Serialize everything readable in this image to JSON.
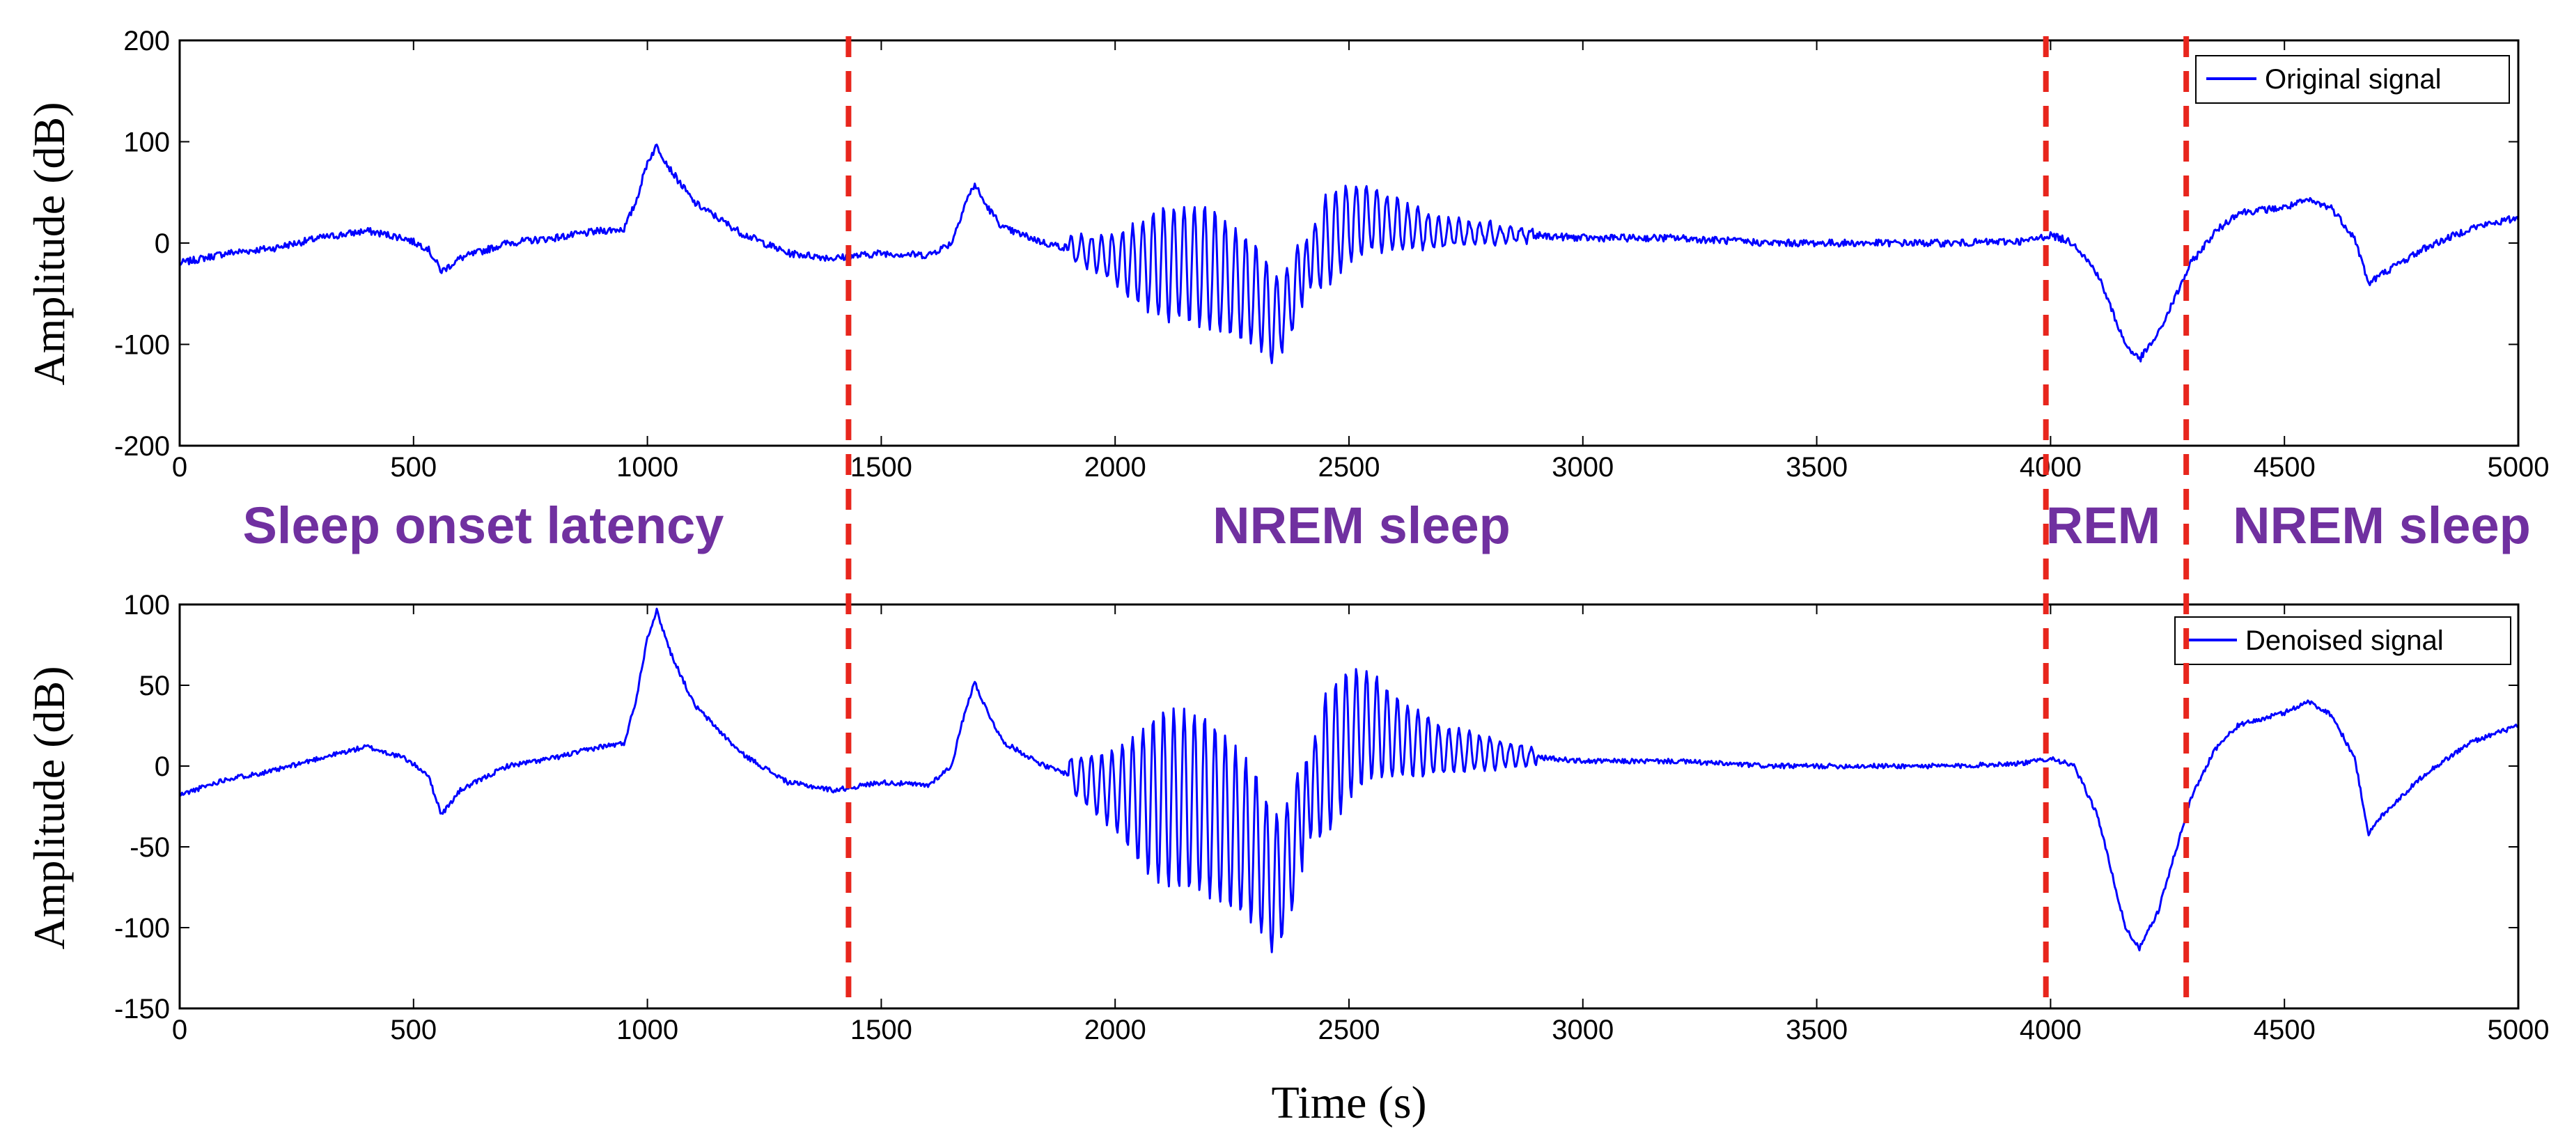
{
  "chart_data": [
    {
      "type": "line",
      "panel": "top",
      "title": "",
      "xlabel": "",
      "ylabel": "Amplitude (dB)",
      "xlim": [
        0,
        5000
      ],
      "ylim": [
        -200,
        200
      ],
      "xticks": [
        0,
        500,
        1000,
        1500,
        2000,
        2500,
        3000,
        3500,
        4000,
        4500,
        5000
      ],
      "yticks": [
        -200,
        -100,
        0,
        100,
        200
      ],
      "legend": "top-right",
      "grid": false,
      "series": [
        {
          "name": "Original signal",
          "color": "#0000ff",
          "noise": 3.5,
          "key_points": [
            [
              0,
              -20
            ],
            [
              100,
              -10
            ],
            [
              200,
              -5
            ],
            [
              300,
              5
            ],
            [
              400,
              12
            ],
            [
              480,
              5
            ],
            [
              530,
              -5
            ],
            [
              560,
              -28
            ],
            [
              600,
              -15
            ],
            [
              700,
              0
            ],
            [
              800,
              5
            ],
            [
              900,
              12
            ],
            [
              950,
              14
            ],
            [
              975,
              40
            ],
            [
              1000,
              80
            ],
            [
              1020,
              96
            ],
            [
              1050,
              72
            ],
            [
              1100,
              40
            ],
            [
              1200,
              10
            ],
            [
              1300,
              -10
            ],
            [
              1400,
              -15
            ],
            [
              1500,
              -10
            ],
            [
              1600,
              -12
            ],
            [
              1650,
              0
            ],
            [
              1680,
              40
            ],
            [
              1700,
              58
            ],
            [
              1720,
              40
            ],
            [
              1760,
              15
            ],
            [
              1850,
              0
            ],
            [
              1950,
              -10
            ],
            [
              2050,
              -20
            ],
            [
              2150,
              -20
            ],
            [
              2200,
              -25
            ],
            [
              2300,
              -50
            ],
            [
              2340,
              -75
            ],
            [
              2370,
              -60
            ],
            [
              2400,
              -30
            ],
            [
              2450,
              0
            ],
            [
              2500,
              20
            ],
            [
              2550,
              25
            ],
            [
              2600,
              18
            ],
            [
              2700,
              10
            ],
            [
              2800,
              10
            ],
            [
              3000,
              5
            ],
            [
              3200,
              5
            ],
            [
              3400,
              0
            ],
            [
              3600,
              0
            ],
            [
              3800,
              0
            ],
            [
              3950,
              2
            ],
            [
              4000,
              8
            ],
            [
              4050,
              0
            ],
            [
              4100,
              -30
            ],
            [
              4160,
              -100
            ],
            [
              4190,
              -115
            ],
            [
              4230,
              -90
            ],
            [
              4300,
              -20
            ],
            [
              4350,
              10
            ],
            [
              4400,
              30
            ],
            [
              4500,
              35
            ],
            [
              4550,
              42
            ],
            [
              4600,
              35
            ],
            [
              4650,
              5
            ],
            [
              4680,
              -40
            ],
            [
              4710,
              -30
            ],
            [
              4800,
              -5
            ],
            [
              4900,
              15
            ],
            [
              5000,
              25
            ]
          ],
          "oscillations": [
            {
              "start": 1900,
              "end": 2420,
              "period": 22,
              "amplitude": [
                [
                  1900,
                  10
                ],
                [
                  2000,
                  25
                ],
                [
                  2100,
                  55
                ],
                [
                  2200,
                  60
                ],
                [
                  2300,
                  50
                ],
                [
                  2400,
                  35
                ],
                [
                  2420,
                  10
                ]
              ]
            },
            {
              "start": 2400,
              "end": 2900,
              "period": 22,
              "amplitude": [
                [
                  2400,
                  15
                ],
                [
                  2450,
                  45
                ],
                [
                  2500,
                  40
                ],
                [
                  2600,
                  25
                ],
                [
                  2700,
                  15
                ],
                [
                  2800,
                  10
                ],
                [
                  2900,
                  5
                ]
              ]
            }
          ]
        }
      ]
    },
    {
      "type": "line",
      "panel": "bottom",
      "title": "",
      "xlabel": "Time (s)",
      "ylabel": "Amplitude (dB)",
      "xlim": [
        0,
        5000
      ],
      "ylim": [
        -150,
        100
      ],
      "xticks": [
        0,
        500,
        1000,
        1500,
        2000,
        2500,
        3000,
        3500,
        4000,
        4500,
        5000
      ],
      "yticks": [
        -150,
        -100,
        -50,
        0,
        50,
        100
      ],
      "legend": "top-right",
      "grid": false,
      "series": [
        {
          "name": "Denoised signal",
          "color": "#0000ff",
          "noise": 1.5,
          "key_points": [
            [
              0,
              -18
            ],
            [
              100,
              -8
            ],
            [
              200,
              -3
            ],
            [
              300,
              5
            ],
            [
              400,
              12
            ],
            [
              480,
              5
            ],
            [
              530,
              -5
            ],
            [
              560,
              -30
            ],
            [
              600,
              -15
            ],
            [
              700,
              0
            ],
            [
              800,
              5
            ],
            [
              900,
              12
            ],
            [
              950,
              14
            ],
            [
              975,
              40
            ],
            [
              1000,
              80
            ],
            [
              1020,
              96
            ],
            [
              1050,
              70
            ],
            [
              1100,
              38
            ],
            [
              1200,
              8
            ],
            [
              1300,
              -10
            ],
            [
              1400,
              -15
            ],
            [
              1500,
              -10
            ],
            [
              1600,
              -12
            ],
            [
              1650,
              0
            ],
            [
              1680,
              35
            ],
            [
              1700,
              52
            ],
            [
              1720,
              38
            ],
            [
              1760,
              15
            ],
            [
              1850,
              0
            ],
            [
              1950,
              -10
            ],
            [
              2050,
              -20
            ],
            [
              2150,
              -20
            ],
            [
              2200,
              -25
            ],
            [
              2300,
              -50
            ],
            [
              2340,
              -75
            ],
            [
              2370,
              -60
            ],
            [
              2400,
              -30
            ],
            [
              2450,
              0
            ],
            [
              2500,
              20
            ],
            [
              2550,
              25
            ],
            [
              2600,
              18
            ],
            [
              2700,
              10
            ],
            [
              2800,
              8
            ],
            [
              3000,
              3
            ],
            [
              3200,
              3
            ],
            [
              3400,
              0
            ],
            [
              3600,
              0
            ],
            [
              3800,
              0
            ],
            [
              3950,
              2
            ],
            [
              4000,
              5
            ],
            [
              4050,
              0
            ],
            [
              4100,
              -30
            ],
            [
              4160,
              -100
            ],
            [
              4190,
              -113
            ],
            [
              4230,
              -90
            ],
            [
              4300,
              -20
            ],
            [
              4350,
              10
            ],
            [
              4400,
              25
            ],
            [
              4500,
              33
            ],
            [
              4550,
              40
            ],
            [
              4600,
              32
            ],
            [
              4650,
              5
            ],
            [
              4680,
              -42
            ],
            [
              4710,
              -30
            ],
            [
              4800,
              -5
            ],
            [
              4900,
              15
            ],
            [
              5000,
              25
            ]
          ],
          "oscillations": [
            {
              "start": 1900,
              "end": 2420,
              "period": 22,
              "amplitude": [
                [
                  1900,
                  10
                ],
                [
                  2000,
                  25
                ],
                [
                  2100,
                  55
                ],
                [
                  2200,
                  55
                ],
                [
                  2300,
                  48
                ],
                [
                  2400,
                  35
                ],
                [
                  2420,
                  10
                ]
              ]
            },
            {
              "start": 2400,
              "end": 2900,
              "period": 22,
              "amplitude": [
                [
                  2400,
                  15
                ],
                [
                  2450,
                  45
                ],
                [
                  2500,
                  40
                ],
                [
                  2600,
                  25
                ],
                [
                  2700,
                  15
                ],
                [
                  2800,
                  10
                ],
                [
                  2900,
                  5
                ]
              ]
            }
          ]
        }
      ]
    }
  ],
  "stage_boundaries": [
    1430,
    3990,
    4290
  ],
  "stage_labels": [
    {
      "text": "Sleep onset latency",
      "start": 0,
      "end": 1430
    },
    {
      "text": "NREM sleep",
      "start": 1430,
      "end": 3990
    },
    {
      "text": "REM",
      "start": 3990,
      "end": 4290
    },
    {
      "text": "NREM sleep",
      "start": 4290,
      "end": 5000
    }
  ],
  "colors": {
    "signal": "#0000ff",
    "boundary": "#e8261d",
    "stage_label": "#7030a0"
  }
}
